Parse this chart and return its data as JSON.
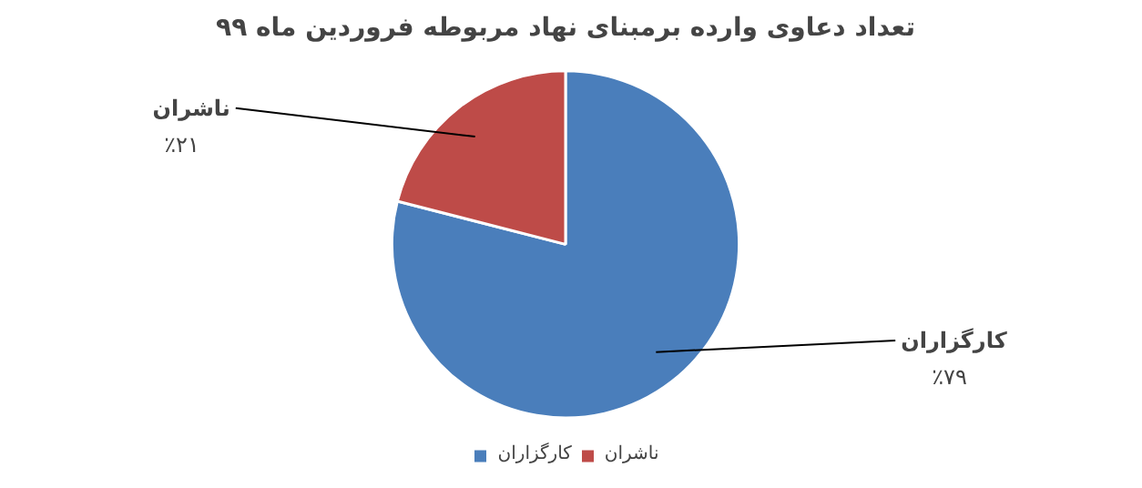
{
  "chart_data": {
    "type": "pie",
    "title": "تعداد دعاوی وارده برمبنای نهاد مربوطه فروردین ماه ۹۹",
    "categories": [
      "کارگزاران",
      "ناشران"
    ],
    "values": [
      79,
      21
    ],
    "value_labels": [
      "٪۷۹",
      "٪۲۱"
    ],
    "colors": [
      "#4a7ebb",
      "#be4b48"
    ],
    "legend": "bottom"
  }
}
